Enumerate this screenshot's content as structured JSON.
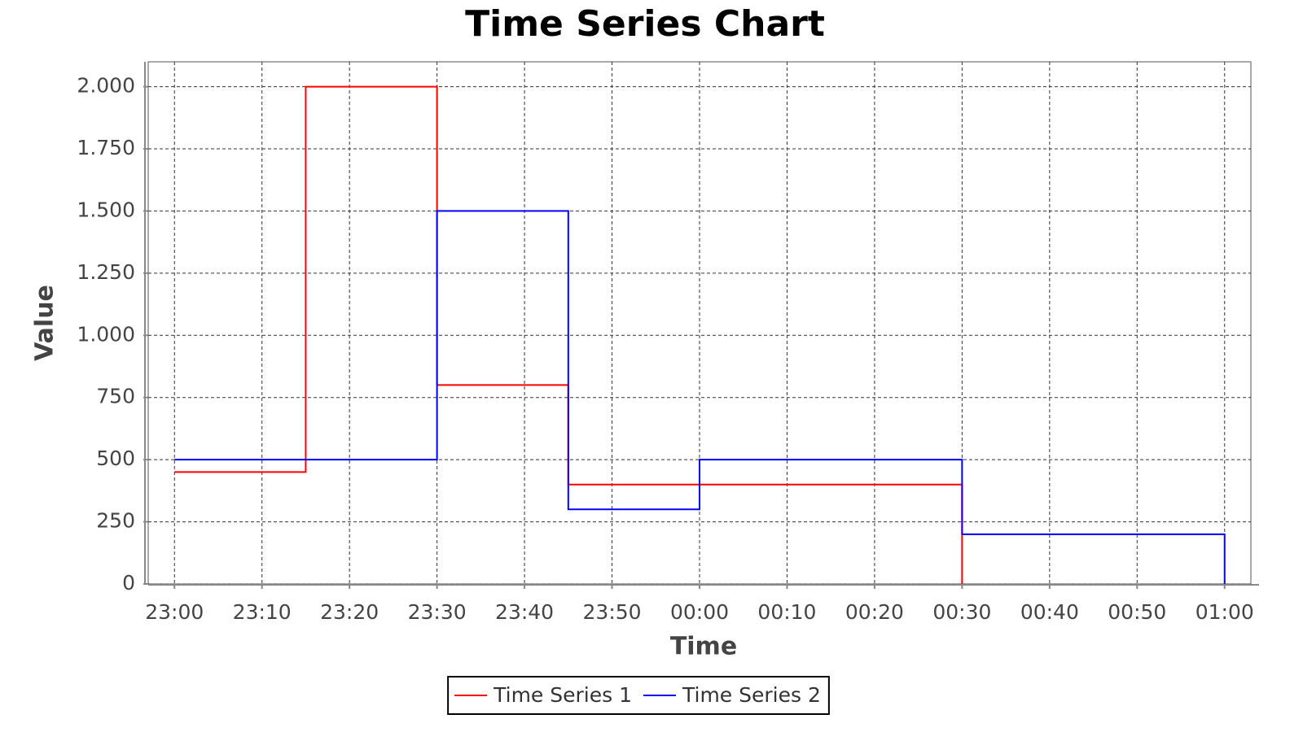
{
  "chart_data": {
    "type": "step",
    "title": "Time Series Chart",
    "x_label": "Time",
    "y_label": "Value",
    "series": [
      {
        "name": "Time Series 1",
        "color": "#ff0000",
        "x": [
          "23:00",
          "23:15",
          "23:30",
          "23:45",
          "00:00",
          "00:15",
          "00:30"
        ],
        "values": [
          450,
          2000,
          800,
          400,
          400,
          400,
          0
        ]
      },
      {
        "name": "Time Series 2",
        "color": "#0000ff",
        "x": [
          "23:00",
          "23:15",
          "23:30",
          "23:45",
          "00:00",
          "00:15",
          "00:30",
          "00:45",
          "01:00"
        ],
        "values": [
          500,
          500,
          1500,
          300,
          500,
          500,
          200,
          200,
          0
        ]
      }
    ],
    "xlim": [
      "22:57",
      "01:03"
    ],
    "xticks": [
      "23:00",
      "23:10",
      "23:20",
      "23:30",
      "23:40",
      "23:50",
      "00:00",
      "00:10",
      "00:20",
      "00:30",
      "00:40",
      "00:50",
      "01:00"
    ],
    "ylim": [
      0,
      2100
    ],
    "yticks": [
      0,
      250,
      500,
      750,
      {
        "value": 1000,
        "label": "1.000"
      },
      {
        "value": 1250,
        "label": "1.250"
      },
      {
        "value": 1500,
        "label": "1.500"
      },
      {
        "value": 1750,
        "label": "1.750"
      },
      {
        "value": 2000,
        "label": "2.000"
      }
    ],
    "grid": true,
    "legend": "bottom"
  }
}
